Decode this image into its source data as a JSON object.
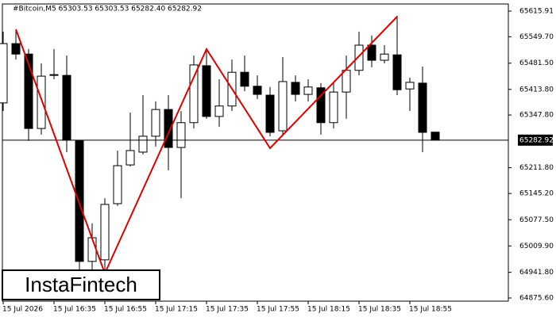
{
  "chart_data": {
    "type": "candlestick",
    "title": "#Bitcoin,M5  65303.53 65303.53 65282.40 65282.92",
    "categories": [
      "15 Jul 2026",
      null,
      null,
      null,
      "15 Jul 16:35",
      null,
      null,
      null,
      "15 Jul 16:55",
      null,
      null,
      null,
      "15 Jul 17:15",
      null,
      null,
      null,
      "15 Jul 17:35",
      null,
      null,
      null,
      "15 Jul 17:55",
      null,
      null,
      null,
      "15 Jul 18:15",
      null,
      null,
      null,
      "15 Jul 18:35",
      null,
      null,
      null,
      "15 Jul 18:55",
      null,
      null
    ],
    "open": [
      65379,
      65532,
      65505,
      65313,
      65451,
      65450,
      65281,
      64970,
      64974,
      65119,
      65219,
      65252,
      65293,
      65362,
      65264,
      65328,
      65475,
      65344,
      65371,
      65458,
      65422,
      65399,
      65307,
      65432,
      65401,
      65418,
      65328,
      65407,
      65463,
      65528,
      65489,
      65503,
      65415,
      65430,
      65303.53
    ],
    "high": [
      65563,
      65567,
      65518,
      65481,
      65518,
      65501,
      65283,
      65068,
      65133,
      65256,
      65354,
      65399,
      65383,
      65399,
      65358,
      65501,
      65518,
      65440,
      65491,
      65501,
      65450,
      65420,
      65497,
      65450,
      65440,
      65430,
      65430,
      65501,
      65563,
      65553,
      65528,
      65604,
      65444,
      65473,
      65303.53
    ],
    "low": [
      65358,
      65491,
      65281,
      65297,
      65440,
      65252,
      64939,
      64939,
      64949,
      65113,
      65215,
      65246,
      65266,
      65205,
      65133,
      65313,
      65338,
      65317,
      65358,
      65409,
      65389,
      65293,
      65297,
      65383,
      65383,
      65297,
      65313,
      65338,
      65450,
      65471,
      65481,
      65399,
      65358,
      65252,
      65282.4
    ],
    "close": [
      65532,
      65505,
      65313,
      65448,
      65452,
      65283,
      64970,
      65031,
      65117,
      65217,
      65256,
      65293,
      65362,
      65264,
      65328,
      65477,
      65344,
      65371,
      65458,
      65422,
      65401,
      65303,
      65434,
      65401,
      65420,
      65328,
      65407,
      65463,
      65528,
      65489,
      65505,
      65413,
      65432,
      65303,
      65282.92
    ],
    "up_color": "#ffffff",
    "down_color": "#000000",
    "current_price": 65282.92,
    "ylim": [
      64867.4,
      65634.3
    ],
    "yticks": [
      65615.91,
      {
        "value": 65549.7,
        "label": "65549.70"
      },
      {
        "value": 65481.5,
        "label": "65481.50"
      },
      {
        "value": 65413.8,
        "label": "65413.80"
      },
      {
        "value": 65347.8,
        "label": "65347.80"
      },
      {
        "value": 65211.8,
        "label": "65211.80"
      },
      {
        "value": 65145.2,
        "label": "65145.20"
      },
      {
        "value": 65077.5,
        "label": "65077.50"
      },
      {
        "value": 65009.9,
        "label": "65009.90"
      },
      {
        "value": 64941.8,
        "label": "64941.80"
      },
      {
        "value": 64875.6,
        "label": "64875.60"
      }
    ],
    "logo": "InstaFintech"
  }
}
